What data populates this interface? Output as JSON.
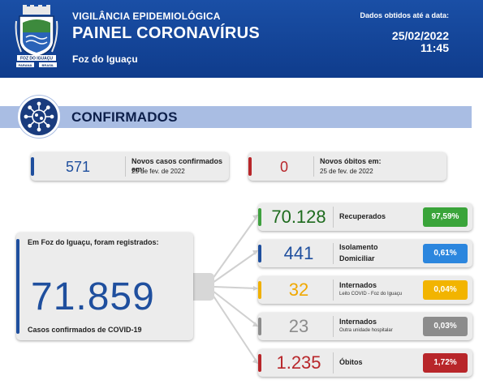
{
  "header": {
    "subtitle": "VIGILÂNCIA EPIDEMIOLÓGICA",
    "title": "PAINEL CORONAVÍRUS",
    "city": "Foz do Iguaçu",
    "date_label": "Dados obtidos até a data:",
    "date": "25/02/2022",
    "time": "11:45",
    "logo_banner": "FOZ DO IGUAÇU",
    "logo_left": "PARANÁ",
    "logo_right": "BRASIL",
    "bg_color": "#0f3c8c"
  },
  "section": {
    "title": "CONFIRMADOS",
    "icon": "virus-icon"
  },
  "new_cases": {
    "value": "571",
    "label": "Novos casos confirmados em:",
    "date": "25 de fev. de 2022",
    "color": "#1f4f9e"
  },
  "new_deaths": {
    "value": "0",
    "label": "Novos óbitos em:",
    "date": "25 de fev. de 2022",
    "color": "#b8262a"
  },
  "total": {
    "intro": "Em Foz do Iguaçu, foram registrados:",
    "value": "71.859",
    "footer": "Casos confirmados de COVID-19"
  },
  "breakdown": [
    {
      "value": "70.128",
      "label": "Recuperados",
      "label2": "",
      "sublabel": "",
      "percent": "97,59%",
      "color": "#3fa03f",
      "pct_color": "#3aa43a"
    },
    {
      "value": "441",
      "label": "Isolamento",
      "label2": "Domiciliar",
      "sublabel": "",
      "percent": "0,61%",
      "color": "#1f4f9e",
      "pct_color": "#2b86de"
    },
    {
      "value": "32",
      "label": "Internados",
      "label2": "",
      "sublabel": "Leito COVID - Foz do Iguaçu",
      "percent": "0,04%",
      "color": "#f0b000",
      "pct_color": "#f2b400"
    },
    {
      "value": "23",
      "label": "Internados",
      "label2": "",
      "sublabel": "Outra unidade hospitalar",
      "percent": "0,03%",
      "color": "#8c8c8c",
      "pct_color": "#8c8c8c"
    },
    {
      "value": "1.235",
      "label": "Óbitos",
      "label2": "",
      "sublabel": "",
      "percent": "1,72%",
      "color": "#b8262a",
      "pct_color": "#b8262a"
    }
  ]
}
